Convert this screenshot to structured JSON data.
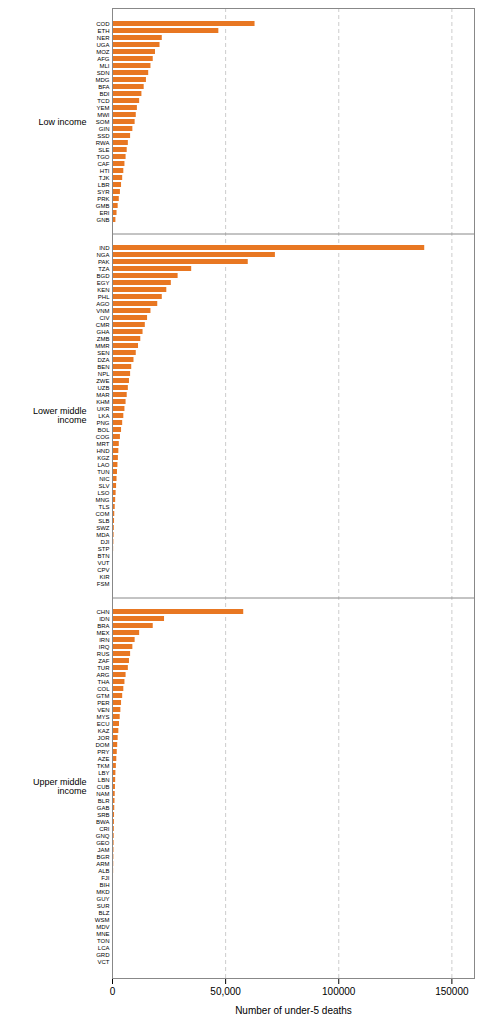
{
  "chart_data": {
    "type": "bar",
    "orientation": "horizontal",
    "xlabel": "Number of under-5 deaths",
    "color": "#E87722",
    "xlim": [
      0,
      160000
    ],
    "xticks": [
      0,
      {
        "value": 50000,
        "label": "50,000"
      },
      100000,
      150000
    ],
    "grid": true,
    "groups": [
      {
        "label": "Low income",
        "categories": [
          "COD",
          "ETH",
          "NER",
          "UGA",
          "MOZ",
          "AFG",
          "MLI",
          "SDN",
          "MDG",
          "BFA",
          "BDI",
          "TCD",
          "YEM",
          "MWI",
          "SOM",
          "GIN",
          "SSD",
          "RWA",
          "SLE",
          "TGO",
          "CAF",
          "HTI",
          "TJK",
          "LBR",
          "SYR",
          "PRK",
          "GMB",
          "ERI",
          "GNB"
        ],
        "values": [
          63000,
          47000,
          22000,
          21000,
          19000,
          18000,
          17000,
          16000,
          15000,
          14000,
          13000,
          12000,
          11000,
          10500,
          10000,
          9000,
          8000,
          7000,
          6500,
          6000,
          5500,
          5000,
          4500,
          4000,
          3500,
          3000,
          2500,
          2000,
          1500
        ]
      },
      {
        "label": "Lower middle income",
        "categories": [
          "IND",
          "NGA",
          "PAK",
          "TZA",
          "BGD",
          "EGY",
          "KEN",
          "PHL",
          "AGO",
          "VNM",
          "CIV",
          "CMR",
          "GHA",
          "ZMB",
          "MMR",
          "SEN",
          "DZA",
          "BEN",
          "NPL",
          "ZWE",
          "UZB",
          "MAR",
          "KHM",
          "UKR",
          "LKA",
          "PNG",
          "BOL",
          "COG",
          "MRT",
          "HND",
          "KGZ",
          "LAO",
          "TUN",
          "NIC",
          "SLV",
          "LSO",
          "MNG",
          "TLS",
          "COM",
          "SLB",
          "SWZ",
          "MDA",
          "DJI",
          "STP",
          "BTN",
          "VUT",
          "CPV",
          "KIR",
          "FSM"
        ],
        "values": [
          138000,
          72000,
          60000,
          35000,
          29000,
          26000,
          24000,
          22000,
          20000,
          17000,
          15500,
          14500,
          13500,
          12500,
          11500,
          10500,
          9500,
          8500,
          8000,
          7500,
          7000,
          6500,
          6000,
          5500,
          5000,
          4500,
          4000,
          3500,
          3000,
          2800,
          2600,
          2400,
          2200,
          2000,
          1800,
          1600,
          1400,
          1200,
          1000,
          900,
          800,
          700,
          600,
          500,
          400,
          350,
          300,
          250,
          200
        ]
      },
      {
        "label": "Upper middle income",
        "categories": [
          "CHN",
          "IDN",
          "BRA",
          "MEX",
          "IRN",
          "IRQ",
          "RUS",
          "ZAF",
          "TUR",
          "ARG",
          "THA",
          "COL",
          "GTM",
          "PER",
          "VEN",
          "MYS",
          "ECU",
          "KAZ",
          "JOR",
          "DOM",
          "PRY",
          "AZE",
          "TKM",
          "LBY",
          "LBN",
          "CUB",
          "NAM",
          "BLR",
          "GAB",
          "SRB",
          "BWA",
          "CRI",
          "GNQ",
          "GEO",
          "JAM",
          "BGR",
          "ARM",
          "ALB",
          "FJI",
          "BIH",
          "MKD",
          "GUY",
          "SUR",
          "BLZ",
          "WSM",
          "MDV",
          "MNE",
          "TON",
          "LCA",
          "GRD",
          "VCT"
        ],
        "values": [
          58000,
          23000,
          18000,
          12000,
          10000,
          9000,
          8000,
          7500,
          7000,
          6000,
          5500,
          5000,
          4500,
          4000,
          3700,
          3400,
          3100,
          2800,
          2500,
          2300,
          2100,
          1900,
          1700,
          1500,
          1400,
          1300,
          1200,
          1100,
          1000,
          900,
          850,
          800,
          750,
          700,
          650,
          600,
          550,
          500,
          450,
          400,
          350,
          300,
          280,
          260,
          240,
          220,
          200,
          180,
          160,
          140,
          120
        ]
      }
    ]
  }
}
